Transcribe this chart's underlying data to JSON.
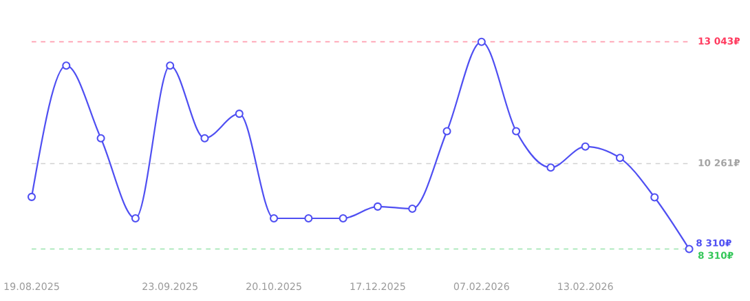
{
  "chart_data": {
    "type": "line",
    "categories": [
      "19.08.2025",
      null,
      null,
      null,
      "23.09.2025",
      null,
      null,
      "20.10.2025",
      null,
      null,
      "17.12.2025",
      null,
      null,
      "07.02.2026",
      null,
      null,
      "13.02.2026",
      null,
      null,
      null
    ],
    "series": [
      {
        "color": "#4f4ff2",
        "values": [
          9500,
          12500,
          10840,
          9010,
          12500,
          10840,
          11400,
          9010,
          9010,
          9010,
          9280,
          9230,
          11000,
          13043,
          11000,
          10170,
          10650,
          10390,
          9490,
          8310
        ],
        "value_labels": [
          null,
          null,
          null,
          null,
          null,
          null,
          null,
          null,
          null,
          null,
          null,
          null,
          null,
          null,
          null,
          null,
          null,
          null,
          null,
          "8 310₽"
        ]
      }
    ],
    "ylim": [
      8310,
      13043
    ],
    "tick_labels": "x",
    "marker": "circle",
    "line_style": "solid",
    "ref_lines": [
      {
        "axis": "y",
        "value": 13043,
        "label": "13 043₽",
        "color": "#ff3b5f",
        "line_style": "dashed"
      },
      {
        "axis": "y",
        "value": 10261,
        "label": "10 261₽",
        "color": "#a3a3a3",
        "line_style": "dashed"
      },
      {
        "axis": "y",
        "value": 8310,
        "label": "8 310₽",
        "color": "#34c759",
        "line_style": "dashed"
      }
    ]
  }
}
